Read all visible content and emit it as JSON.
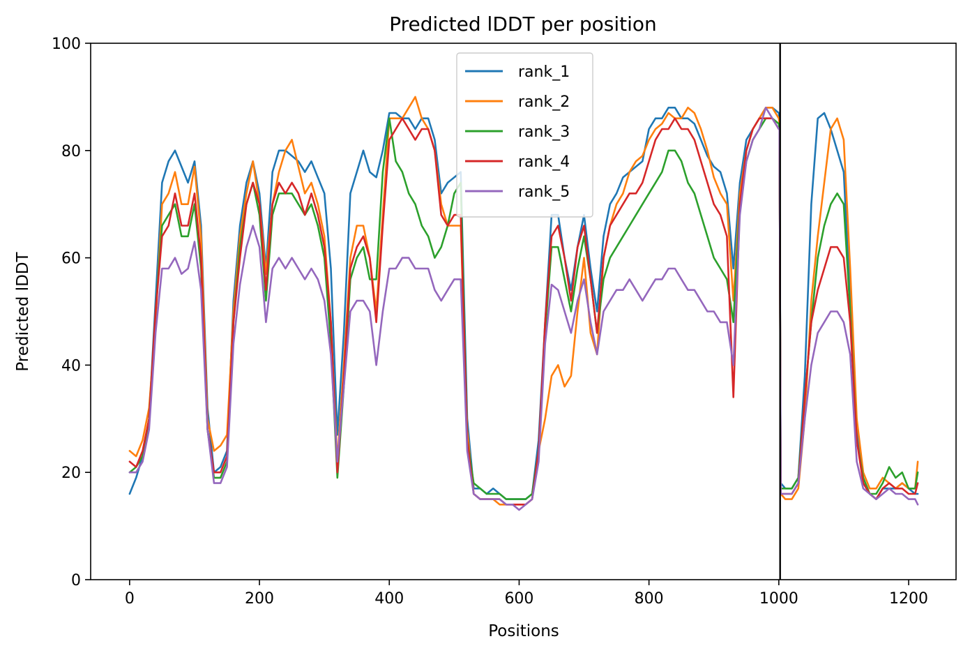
{
  "chart_data": {
    "type": "line",
    "title": "Predicted lDDT per position",
    "xlabel": "Positions",
    "ylabel": "Predicted lDDT",
    "xlim": [
      -60,
      1273
    ],
    "ylim": [
      0,
      100
    ],
    "xticks": [
      0,
      200,
      400,
      600,
      800,
      1000,
      1200
    ],
    "yticks": [
      0,
      20,
      40,
      60,
      80,
      100
    ],
    "xtick_labels": [
      "0",
      "200",
      "400",
      "600",
      "800",
      "1000",
      "1200"
    ],
    "ytick_labels": [
      "0",
      "20",
      "40",
      "60",
      "80",
      "100"
    ],
    "grid": false,
    "legend_position": "top-center",
    "vlines": [
      {
        "x": 1002,
        "color": "#000000"
      }
    ],
    "colors": {
      "rank_1": "#1f77b4",
      "rank_2": "#ff7f0e",
      "rank_3": "#2ca02c",
      "rank_4": "#d62728",
      "rank_5": "#9467bd"
    },
    "series": [
      {
        "name": "rank_1",
        "color": "#1f77b4",
        "x": [
          0,
          10,
          20,
          30,
          40,
          50,
          60,
          70,
          80,
          90,
          100,
          110,
          120,
          130,
          140,
          150,
          160,
          170,
          180,
          190,
          200,
          210,
          220,
          230,
          240,
          250,
          260,
          270,
          280,
          290,
          300,
          310,
          320,
          330,
          340,
          350,
          360,
          370,
          380,
          390,
          400,
          410,
          420,
          430,
          440,
          450,
          460,
          470,
          480,
          490,
          500,
          510,
          520,
          530,
          540,
          550,
          560,
          570,
          580,
          590,
          600,
          610,
          620,
          630,
          640,
          650,
          660,
          670,
          680,
          690,
          700,
          710,
          720,
          730,
          740,
          750,
          760,
          770,
          780,
          790,
          800,
          810,
          820,
          830,
          840,
          850,
          860,
          870,
          880,
          890,
          900,
          910,
          920,
          930,
          940,
          950,
          960,
          970,
          980,
          990,
          1000,
          1001,
          1003,
          1010,
          1020,
          1030,
          1040,
          1050,
          1060,
          1070,
          1080,
          1090,
          1100,
          1110,
          1120,
          1130,
          1140,
          1150,
          1160,
          1170,
          1180,
          1190,
          1200,
          1210,
          1214
        ],
        "y": [
          16,
          19,
          23,
          30,
          52,
          74,
          78,
          80,
          77,
          74,
          78,
          66,
          32,
          20,
          21,
          24,
          52,
          66,
          74,
          78,
          72,
          58,
          76,
          80,
          80,
          79,
          78,
          76,
          78,
          75,
          72,
          58,
          27,
          46,
          72,
          76,
          80,
          76,
          75,
          80,
          87,
          87,
          86,
          86,
          84,
          86,
          86,
          82,
          72,
          74,
          75,
          76,
          30,
          17,
          17,
          16,
          17,
          16,
          15,
          15,
          15,
          15,
          16,
          26,
          48,
          68,
          68,
          60,
          54,
          62,
          68,
          58,
          50,
          64,
          70,
          72,
          75,
          76,
          77,
          78,
          84,
          86,
          86,
          88,
          88,
          86,
          86,
          85,
          82,
          79,
          77,
          76,
          72,
          58,
          74,
          82,
          84,
          86,
          88,
          88,
          87,
          85,
          18,
          17,
          17,
          19,
          38,
          70,
          86,
          87,
          84,
          80,
          76,
          52,
          28,
          18,
          16,
          15,
          17,
          17,
          17,
          18,
          17,
          16,
          16
        ]
      },
      {
        "name": "rank_2",
        "color": "#ff7f0e",
        "x": [
          0,
          10,
          20,
          30,
          40,
          50,
          60,
          70,
          80,
          90,
          100,
          110,
          120,
          130,
          140,
          150,
          160,
          170,
          180,
          190,
          200,
          210,
          220,
          230,
          240,
          250,
          260,
          270,
          280,
          290,
          300,
          310,
          320,
          330,
          340,
          350,
          360,
          370,
          380,
          390,
          400,
          410,
          420,
          430,
          440,
          450,
          460,
          470,
          480,
          490,
          500,
          510,
          520,
          530,
          540,
          550,
          560,
          570,
          580,
          590,
          600,
          610,
          620,
          630,
          640,
          650,
          660,
          670,
          680,
          690,
          700,
          710,
          720,
          730,
          740,
          750,
          760,
          770,
          780,
          790,
          800,
          810,
          820,
          830,
          840,
          850,
          860,
          870,
          880,
          890,
          900,
          910,
          920,
          930,
          940,
          950,
          960,
          970,
          980,
          990,
          1000,
          1001,
          1003,
          1010,
          1020,
          1030,
          1040,
          1050,
          1060,
          1070,
          1080,
          1090,
          1100,
          1110,
          1120,
          1130,
          1140,
          1150,
          1160,
          1170,
          1180,
          1190,
          1200,
          1210,
          1214
        ],
        "y": [
          24,
          23,
          26,
          32,
          48,
          70,
          72,
          76,
          70,
          70,
          77,
          64,
          30,
          24,
          25,
          27,
          50,
          64,
          72,
          78,
          70,
          57,
          70,
          76,
          80,
          82,
          77,
          72,
          74,
          70,
          64,
          48,
          22,
          40,
          60,
          66,
          66,
          60,
          50,
          68,
          86,
          86,
          86,
          88,
          90,
          86,
          84,
          80,
          70,
          66,
          66,
          66,
          28,
          16,
          15,
          15,
          15,
          14,
          14,
          14,
          14,
          14,
          15,
          24,
          30,
          38,
          40,
          36,
          38,
          50,
          60,
          46,
          42,
          60,
          66,
          70,
          72,
          76,
          78,
          79,
          82,
          84,
          85,
          87,
          86,
          86,
          88,
          87,
          84,
          80,
          75,
          72,
          70,
          52,
          72,
          80,
          84,
          86,
          88,
          88,
          86,
          85,
          16,
          15,
          15,
          17,
          30,
          52,
          64,
          74,
          84,
          86,
          82,
          58,
          30,
          20,
          17,
          17,
          19,
          18,
          17,
          18,
          17,
          17,
          22
        ]
      },
      {
        "name": "rank_3",
        "color": "#2ca02c",
        "x": [
          0,
          10,
          20,
          30,
          40,
          50,
          60,
          70,
          80,
          90,
          100,
          110,
          120,
          130,
          140,
          150,
          160,
          170,
          180,
          190,
          200,
          210,
          220,
          230,
          240,
          250,
          260,
          270,
          280,
          290,
          300,
          310,
          320,
          330,
          340,
          350,
          360,
          370,
          380,
          390,
          400,
          410,
          420,
          430,
          440,
          450,
          460,
          470,
          480,
          490,
          500,
          510,
          520,
          530,
          540,
          550,
          560,
          570,
          580,
          590,
          600,
          610,
          620,
          630,
          640,
          650,
          660,
          670,
          680,
          690,
          700,
          710,
          720,
          730,
          740,
          750,
          760,
          770,
          780,
          790,
          800,
          810,
          820,
          830,
          840,
          850,
          860,
          870,
          880,
          890,
          900,
          910,
          920,
          930,
          940,
          950,
          960,
          970,
          980,
          990,
          1000,
          1001,
          1003,
          1010,
          1020,
          1030,
          1040,
          1050,
          1060,
          1070,
          1080,
          1090,
          1100,
          1110,
          1120,
          1130,
          1140,
          1150,
          1160,
          1170,
          1180,
          1190,
          1200,
          1210,
          1214
        ],
        "y": [
          20,
          21,
          23,
          30,
          50,
          66,
          68,
          70,
          64,
          64,
          70,
          58,
          28,
          19,
          19,
          22,
          48,
          62,
          70,
          74,
          68,
          52,
          68,
          72,
          72,
          72,
          70,
          68,
          70,
          66,
          60,
          44,
          19,
          36,
          56,
          60,
          62,
          56,
          56,
          76,
          86,
          78,
          76,
          72,
          70,
          66,
          64,
          60,
          62,
          66,
          72,
          74,
          26,
          18,
          17,
          16,
          16,
          16,
          15,
          15,
          15,
          15,
          16,
          24,
          46,
          62,
          62,
          56,
          50,
          58,
          64,
          56,
          46,
          56,
          60,
          62,
          64,
          66,
          68,
          70,
          72,
          74,
          76,
          80,
          80,
          78,
          74,
          72,
          68,
          64,
          60,
          58,
          56,
          48,
          70,
          78,
          82,
          84,
          86,
          86,
          85,
          84,
          17,
          17,
          17,
          19,
          34,
          48,
          60,
          66,
          70,
          72,
          70,
          50,
          26,
          19,
          16,
          16,
          18,
          21,
          19,
          20,
          17,
          17,
          20
        ]
      },
      {
        "name": "rank_4",
        "color": "#d62728",
        "x": [
          0,
          10,
          20,
          30,
          40,
          50,
          60,
          70,
          80,
          90,
          100,
          110,
          120,
          130,
          140,
          150,
          160,
          170,
          180,
          190,
          200,
          210,
          220,
          230,
          240,
          250,
          260,
          270,
          280,
          290,
          300,
          310,
          320,
          330,
          340,
          350,
          360,
          370,
          380,
          390,
          400,
          410,
          420,
          430,
          440,
          450,
          460,
          470,
          480,
          490,
          500,
          510,
          520,
          530,
          540,
          550,
          560,
          570,
          580,
          590,
          600,
          610,
          620,
          630,
          640,
          650,
          660,
          670,
          680,
          690,
          700,
          710,
          720,
          730,
          740,
          750,
          760,
          770,
          780,
          790,
          800,
          810,
          820,
          830,
          840,
          850,
          860,
          870,
          880,
          890,
          900,
          910,
          920,
          930,
          940,
          950,
          960,
          970,
          980,
          990,
          1000,
          1001,
          1003,
          1010,
          1020,
          1030,
          1040,
          1050,
          1060,
          1070,
          1080,
          1090,
          1100,
          1110,
          1120,
          1130,
          1140,
          1150,
          1160,
          1170,
          1180,
          1190,
          1200,
          1210,
          1214
        ],
        "y": [
          22,
          21,
          24,
          30,
          50,
          64,
          66,
          72,
          66,
          66,
          72,
          60,
          28,
          20,
          20,
          23,
          48,
          60,
          70,
          74,
          70,
          54,
          70,
          74,
          72,
          74,
          72,
          68,
          72,
          68,
          62,
          48,
          20,
          38,
          58,
          62,
          64,
          60,
          48,
          66,
          82,
          84,
          86,
          84,
          82,
          84,
          84,
          80,
          68,
          66,
          68,
          68,
          26,
          16,
          15,
          15,
          15,
          15,
          14,
          14,
          14,
          14,
          15,
          24,
          48,
          64,
          66,
          60,
          52,
          62,
          66,
          56,
          46,
          60,
          66,
          68,
          70,
          72,
          72,
          74,
          78,
          82,
          84,
          84,
          86,
          84,
          84,
          82,
          78,
          74,
          70,
          68,
          64,
          34,
          70,
          80,
          84,
          86,
          86,
          86,
          84,
          84,
          16,
          16,
          16,
          18,
          34,
          48,
          54,
          58,
          62,
          62,
          60,
          48,
          26,
          18,
          16,
          15,
          17,
          18,
          17,
          17,
          16,
          16,
          18
        ]
      },
      {
        "name": "rank_5",
        "color": "#9467bd",
        "x": [
          0,
          10,
          20,
          30,
          40,
          50,
          60,
          70,
          80,
          90,
          100,
          110,
          120,
          130,
          140,
          150,
          160,
          170,
          180,
          190,
          200,
          210,
          220,
          230,
          240,
          250,
          260,
          270,
          280,
          290,
          300,
          310,
          320,
          330,
          340,
          350,
          360,
          370,
          380,
          390,
          400,
          410,
          420,
          430,
          440,
          450,
          460,
          470,
          480,
          490,
          500,
          510,
          520,
          530,
          540,
          550,
          560,
          570,
          580,
          590,
          600,
          610,
          620,
          630,
          640,
          650,
          660,
          670,
          680,
          690,
          700,
          710,
          720,
          730,
          740,
          750,
          760,
          770,
          780,
          790,
          800,
          810,
          820,
          830,
          840,
          850,
          860,
          870,
          880,
          890,
          900,
          910,
          920,
          930,
          940,
          950,
          960,
          970,
          980,
          990,
          1000,
          1001,
          1003,
          1010,
          1020,
          1030,
          1040,
          1050,
          1060,
          1070,
          1080,
          1090,
          1100,
          1110,
          1120,
          1130,
          1140,
          1150,
          1160,
          1170,
          1180,
          1190,
          1200,
          1210,
          1214
        ],
        "y": [
          20,
          20,
          22,
          28,
          46,
          58,
          58,
          60,
          57,
          58,
          63,
          54,
          28,
          18,
          18,
          21,
          44,
          55,
          62,
          66,
          62,
          48,
          58,
          60,
          58,
          60,
          58,
          56,
          58,
          56,
          52,
          42,
          22,
          36,
          50,
          52,
          52,
          50,
          40,
          50,
          58,
          58,
          60,
          60,
          58,
          58,
          58,
          54,
          52,
          54,
          56,
          56,
          24,
          16,
          15,
          15,
          15,
          15,
          14,
          14,
          13,
          14,
          15,
          22,
          44,
          55,
          54,
          50,
          46,
          52,
          56,
          48,
          42,
          50,
          52,
          54,
          54,
          56,
          54,
          52,
          54,
          56,
          56,
          58,
          58,
          56,
          54,
          54,
          52,
          50,
          50,
          48,
          48,
          40,
          68,
          78,
          82,
          84,
          88,
          86,
          84,
          84,
          16,
          16,
          16,
          18,
          30,
          40,
          46,
          48,
          50,
          50,
          48,
          42,
          22,
          17,
          16,
          15,
          16,
          17,
          16,
          16,
          15,
          15,
          14
        ]
      }
    ]
  }
}
